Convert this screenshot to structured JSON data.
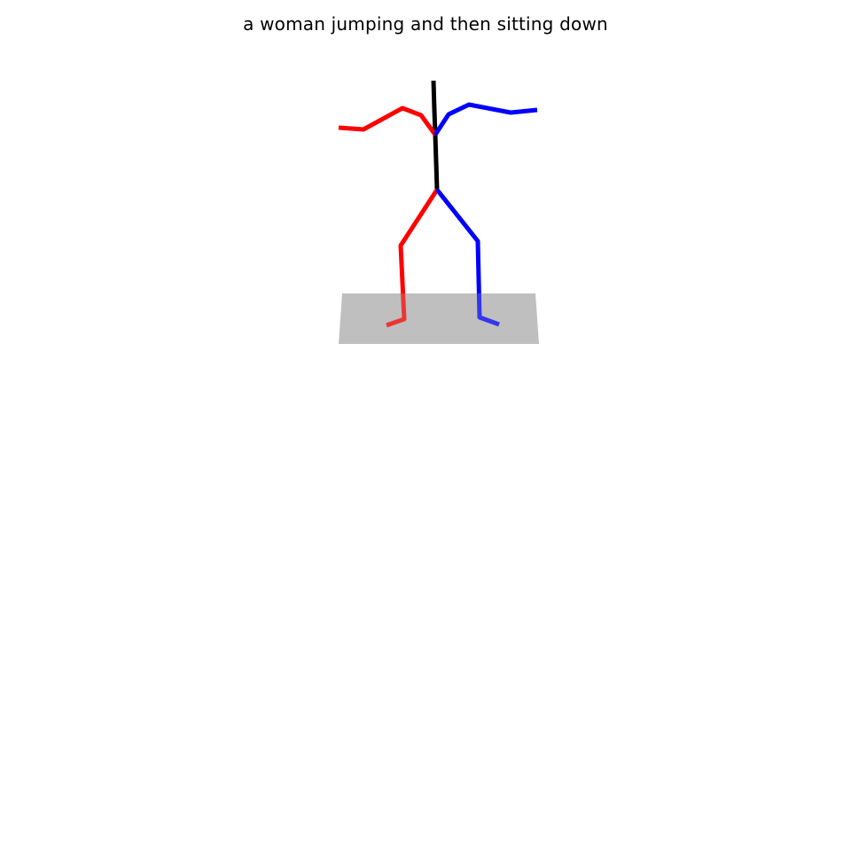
{
  "caption": "a woman jumping and then sitting down",
  "colors": {
    "background": "#ffffff",
    "ground": "#bfbfbf",
    "spine": "#000000",
    "right_side": "#ff0000",
    "left_side": "#0000ff"
  }
}
